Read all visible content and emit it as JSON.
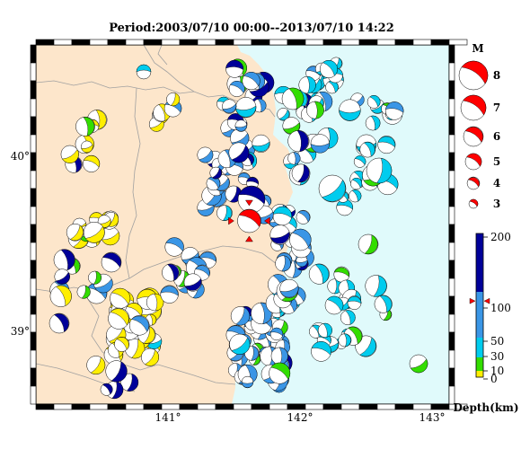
{
  "title": "Period:2003/07/10 00:00--2013/07/10 14:22",
  "axes": {
    "x_ticks": [
      "141°",
      "142°",
      "143°"
    ],
    "y_ticks": [
      "40°",
      "39°"
    ],
    "lon_range": [
      140.0,
      143.1
    ],
    "lat_range": [
      38.6,
      40.6
    ]
  },
  "legend": {
    "title": "M",
    "magnitudes": [
      "8",
      "7",
      "6",
      "5",
      "4",
      "3"
    ],
    "color": "#ff0000"
  },
  "colorbar": {
    "labels": [
      "200",
      "100",
      "50",
      "30",
      "10",
      "0"
    ],
    "xlabel": "Depth(km)",
    "colors": [
      "#ffee00",
      "#33dd00",
      "#00ccee",
      "#3a96e6",
      "#000099"
    ],
    "marked_depth_km": 90
  },
  "colors": {
    "land": "#fde6cb",
    "sea": "#e0fafb",
    "mainshock": "#ff0000"
  },
  "mainshock": {
    "lon": 141.6,
    "lat": 39.62,
    "magnitude": 5.6,
    "depth_km": 90
  }
}
